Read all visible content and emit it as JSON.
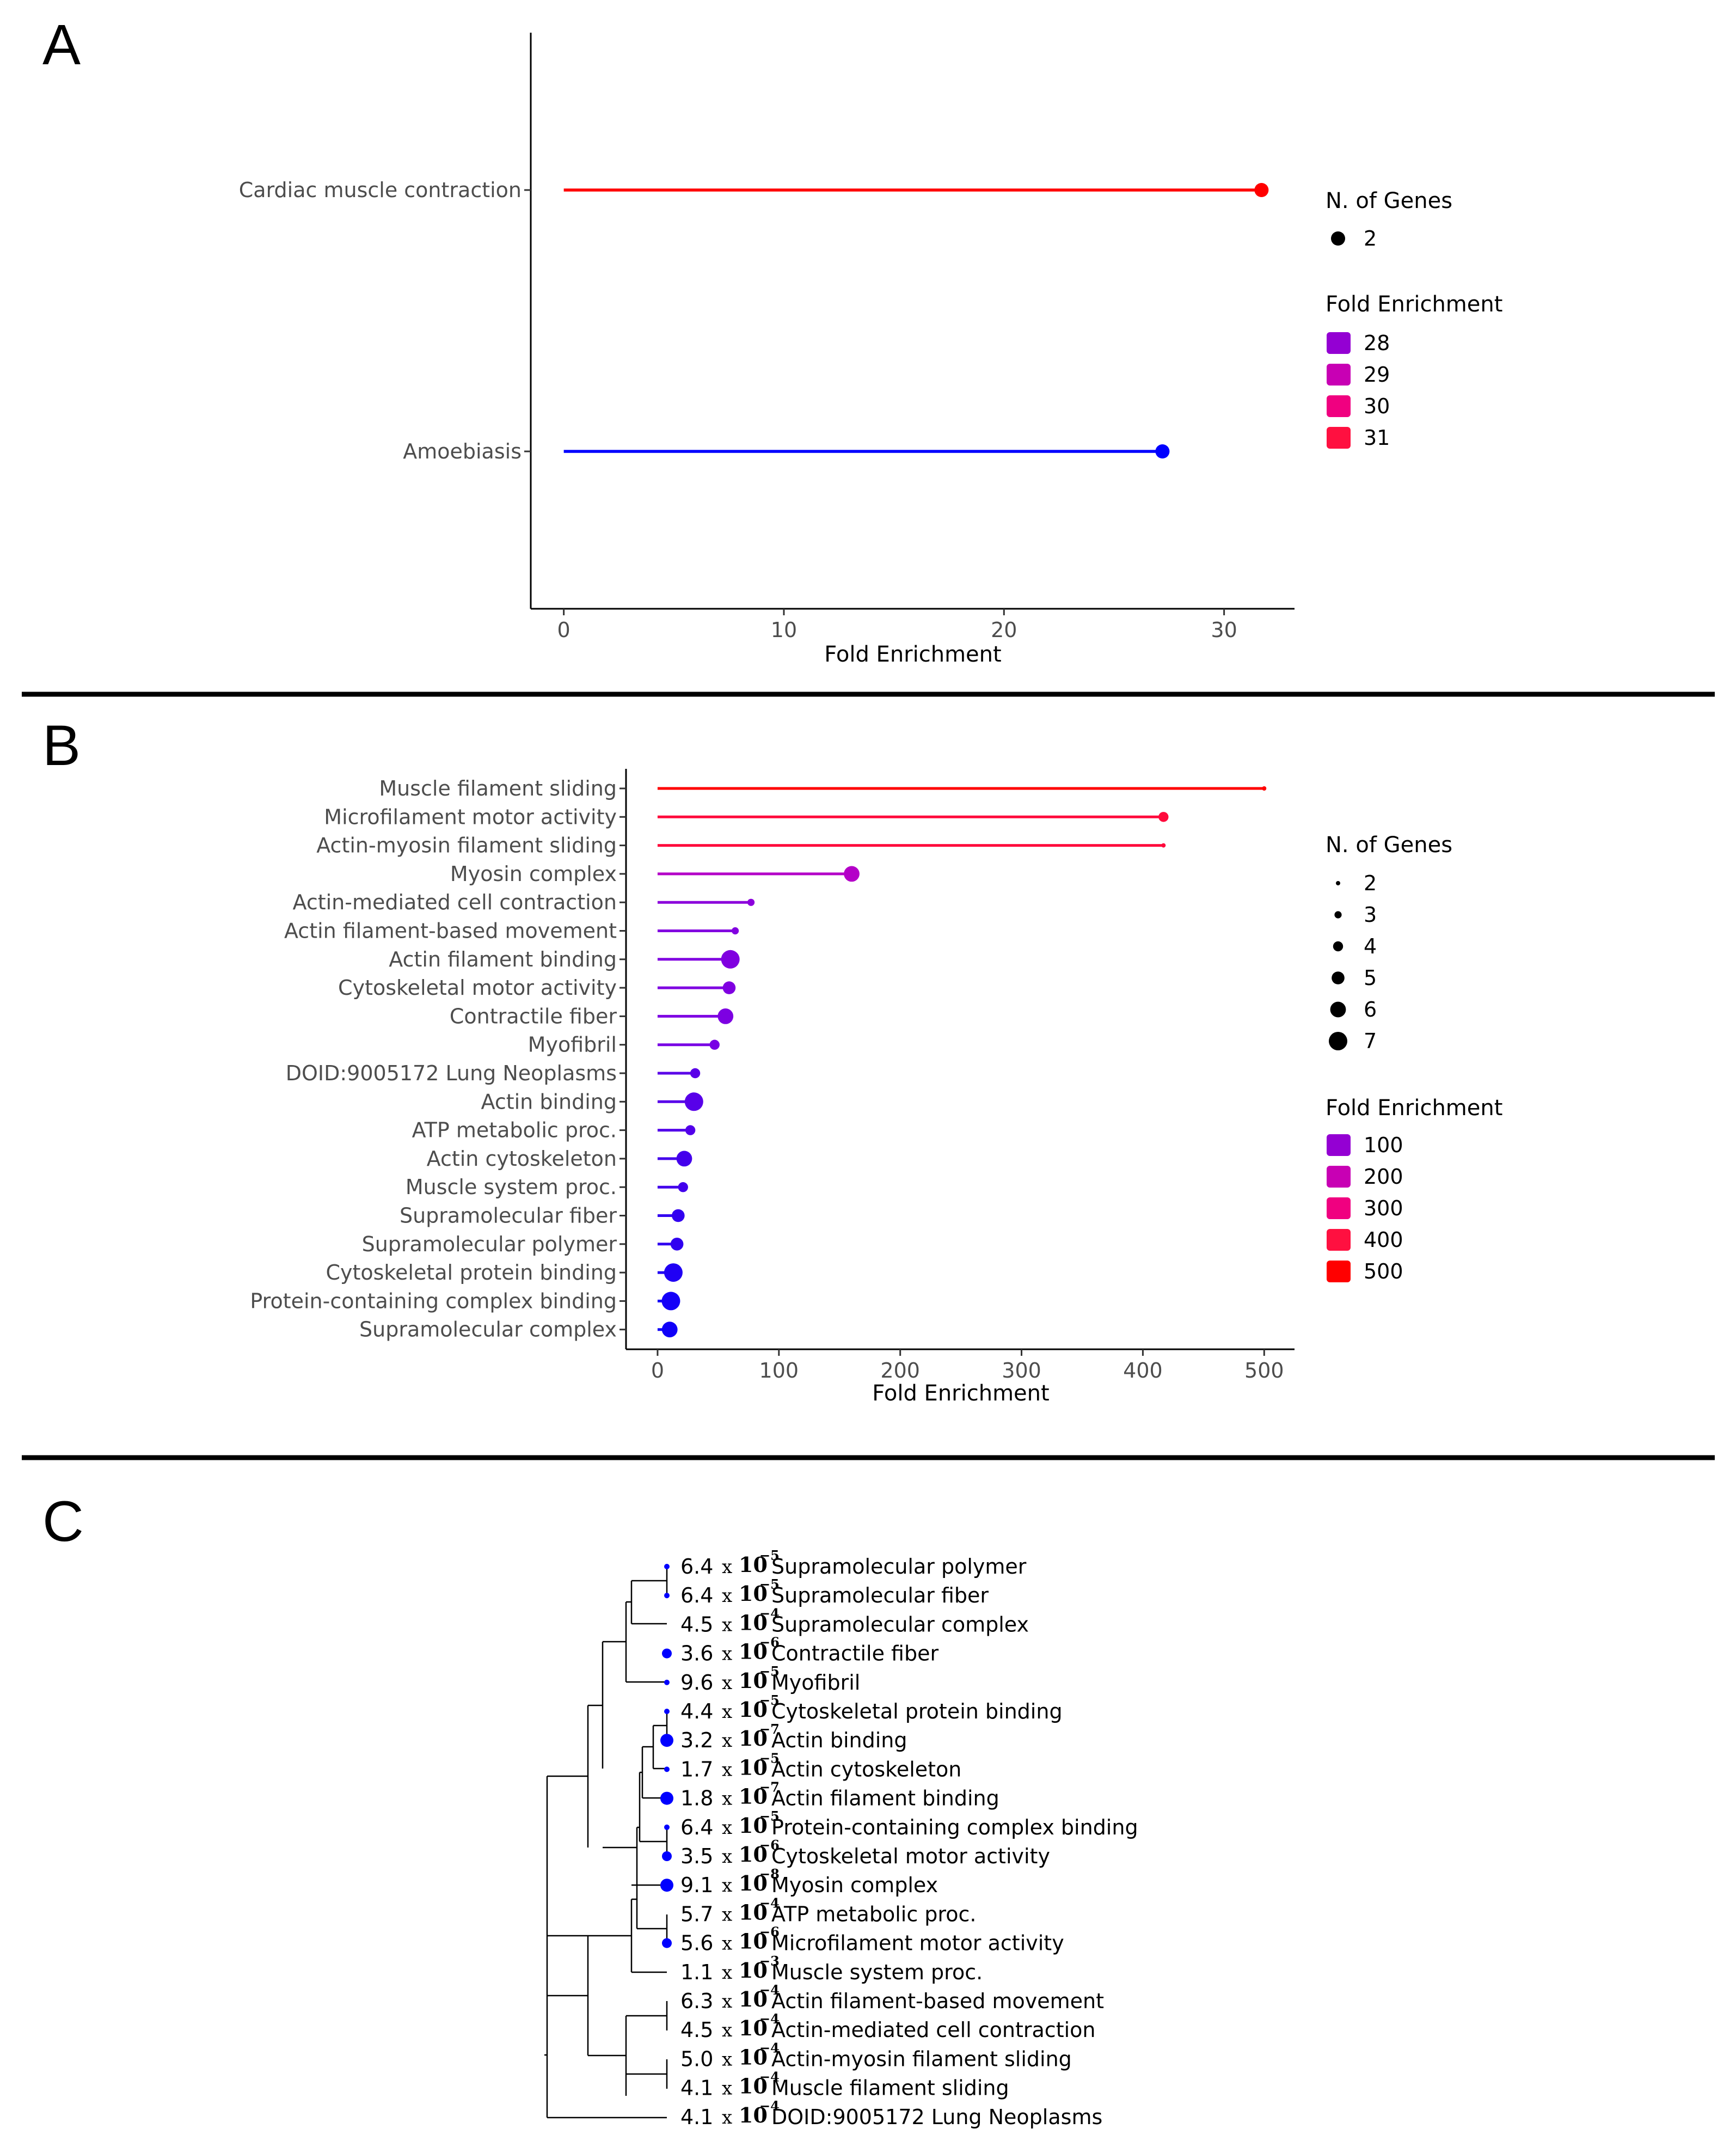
{
  "panels": {
    "A": {
      "letter": "A"
    },
    "B": {
      "letter": "B"
    },
    "C": {
      "letter": "C"
    }
  },
  "chart_data": [
    {
      "panel": "A",
      "type": "lollipop",
      "xlabel": "Fold Enrichment",
      "xlim": [
        -1.5,
        33.2
      ],
      "xticks": [
        0,
        10,
        20,
        30
      ],
      "categories": [
        "Cardiac muscle contraction",
        "Amoebiasis"
      ],
      "values": [
        31.7,
        27.2
      ],
      "genes": [
        2,
        2
      ],
      "colors": [
        "#ff0000",
        "#0000ff"
      ],
      "legend_size": {
        "title": "N. of Genes",
        "entries": [
          {
            "label": "2",
            "value": 2
          }
        ]
      },
      "legend_color": {
        "title": "Fold Enrichment",
        "entries": [
          {
            "label": "28",
            "color": "#9400d3"
          },
          {
            "label": "29",
            "color": "#c800b4"
          },
          {
            "label": "30",
            "color": "#f00080"
          },
          {
            "label": "31",
            "color": "#ff1040"
          }
        ]
      }
    },
    {
      "panel": "B",
      "type": "lollipop",
      "xlabel": "Fold Enrichment",
      "xlim": [
        -26,
        525
      ],
      "xticks": [
        0,
        100,
        200,
        300,
        400,
        500
      ],
      "categories": [
        "Muscle filament sliding",
        "Microfilament motor activity",
        "Actin-myosin filament sliding",
        "Myosin complex",
        "Actin-mediated cell contraction",
        "Actin filament-based movement",
        "Actin filament binding",
        "Cytoskeletal motor activity",
        "Contractile fiber",
        "Myofibril",
        "DOID:9005172 Lung Neoplasms",
        "Actin binding",
        "ATP metabolic proc.",
        "Actin cytoskeleton",
        "Muscle system proc.",
        "Supramolecular fiber",
        "Supramolecular polymer",
        "Cytoskeletal protein binding",
        "Protein-containing complex binding",
        "Supramolecular complex"
      ],
      "values": [
        500,
        417,
        417,
        160,
        77,
        64,
        60,
        59,
        56,
        47,
        31,
        30,
        27,
        22,
        21,
        17,
        16,
        13,
        11,
        10
      ],
      "genes": [
        2,
        4,
        2,
        6,
        3,
        3,
        7,
        5,
        6,
        4,
        4,
        7,
        4,
        6,
        4,
        5,
        5,
        7,
        7,
        6
      ],
      "colors": [
        "#ff0000",
        "#ff0a3c",
        "#ff0a3c",
        "#b400c8",
        "#8c00dc",
        "#8200e0",
        "#8000e0",
        "#7f00e1",
        "#7d00e2",
        "#7800e4",
        "#5a00e8",
        "#5800e9",
        "#5200ea",
        "#4400ec",
        "#4200ec",
        "#3200f0",
        "#3000f0",
        "#2000f4",
        "#1400f8",
        "#1000f8"
      ],
      "legend_size": {
        "title": "N. of Genes",
        "entries": [
          {
            "label": "2",
            "value": 2
          },
          {
            "label": "3",
            "value": 3
          },
          {
            "label": "4",
            "value": 4
          },
          {
            "label": "5",
            "value": 5
          },
          {
            "label": "6",
            "value": 6
          },
          {
            "label": "7",
            "value": 7
          }
        ]
      },
      "legend_color": {
        "title": "Fold Enrichment",
        "entries": [
          {
            "label": "100",
            "color": "#9400d3"
          },
          {
            "label": "200",
            "color": "#c800b4"
          },
          {
            "label": "300",
            "color": "#f00080"
          },
          {
            "label": "400",
            "color": "#ff1040"
          },
          {
            "label": "500",
            "color": "#ff0000"
          }
        ]
      }
    },
    {
      "panel": "C",
      "type": "dendrogram",
      "tips": [
        {
          "mant": "6.4",
          "exp": "−5",
          "label": "Supramolecular polymer",
          "dot": 1
        },
        {
          "mant": "6.4",
          "exp": "−5",
          "label": "Supramolecular fiber",
          "dot": 1
        },
        {
          "mant": "4.5",
          "exp": "−4",
          "label": "Supramolecular complex",
          "dot": 0
        },
        {
          "mant": "3.6",
          "exp": "−6",
          "label": "Contractile fiber",
          "dot": 2
        },
        {
          "mant": "9.6",
          "exp": "−5",
          "label": "Myofibril",
          "dot": 1
        },
        {
          "mant": "4.4",
          "exp": "−5",
          "label": "Cytoskeletal protein binding",
          "dot": 1
        },
        {
          "mant": "3.2",
          "exp": "−7",
          "label": "Actin binding",
          "dot": 3
        },
        {
          "mant": "1.7",
          "exp": "−5",
          "label": "Actin cytoskeleton",
          "dot": 1
        },
        {
          "mant": "1.8",
          "exp": "−7",
          "label": "Actin filament binding",
          "dot": 3
        },
        {
          "mant": "6.4",
          "exp": "−5",
          "label": "Protein-containing complex binding",
          "dot": 1
        },
        {
          "mant": "3.5",
          "exp": "−6",
          "label": "Cytoskeletal motor activity",
          "dot": 2
        },
        {
          "mant": "9.1",
          "exp": "−8",
          "label": "Myosin complex",
          "dot": 3
        },
        {
          "mant": "5.7",
          "exp": "−4",
          "label": "ATP metabolic proc.",
          "dot": 0
        },
        {
          "mant": "5.6",
          "exp": "−6",
          "label": "Microfilament motor activity",
          "dot": 2
        },
        {
          "mant": "1.1",
          "exp": "−3",
          "label": "Muscle system proc.",
          "dot": 0
        },
        {
          "mant": "6.3",
          "exp": "−4",
          "label": "Actin filament-based movement",
          "dot": 0
        },
        {
          "mant": "4.5",
          "exp": "−4",
          "label": "Actin-mediated cell contraction",
          "dot": 0
        },
        {
          "mant": "5.0",
          "exp": "−4",
          "label": "Actin-myosin filament sliding",
          "dot": 0
        },
        {
          "mant": "4.1",
          "exp": "−4",
          "label": "Muscle filament sliding",
          "dot": 0
        },
        {
          "mant": "4.1",
          "exp": "−4",
          "label": "DOID:9005172 Lung Neoplasms",
          "dot": 0
        }
      ],
      "times_sign": "x",
      "base": "10",
      "dot_color": "#0000ff"
    }
  ]
}
